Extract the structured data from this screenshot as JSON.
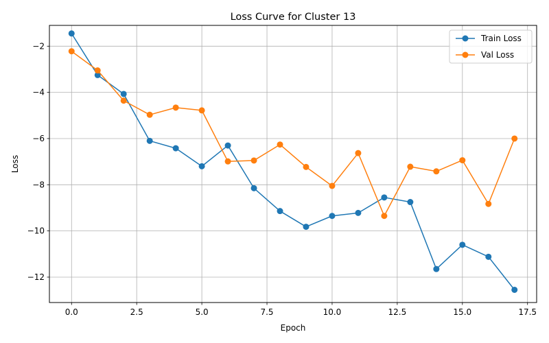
{
  "chart_data": {
    "type": "line",
    "title": "Loss Curve for Cluster 13",
    "xlabel": "Epoch",
    "ylabel": "Loss",
    "xlim": [
      -0.85,
      17.85
    ],
    "ylim": [
      -13.1,
      -1.1
    ],
    "xticks": [
      0.0,
      2.5,
      5.0,
      7.5,
      10.0,
      12.5,
      15.0,
      17.5
    ],
    "xtick_labels": [
      "0.0",
      "2.5",
      "5.0",
      "7.5",
      "10.0",
      "12.5",
      "15.0",
      "17.5"
    ],
    "yticks": [
      -12,
      -10,
      -8,
      -6,
      -4,
      -2
    ],
    "ytick_labels": [
      "−12",
      "−10",
      "−8",
      "−6",
      "−4",
      "−2"
    ],
    "grid": true,
    "legend_position": "top-right",
    "x": [
      0,
      1,
      2,
      3,
      4,
      5,
      6,
      7,
      8,
      9,
      10,
      11,
      12,
      13,
      14,
      15,
      16,
      17
    ],
    "series": [
      {
        "name": "Train Loss",
        "color": "#1f77b4",
        "values": [
          -1.45,
          -3.25,
          -4.07,
          -6.1,
          -6.42,
          -7.2,
          -6.3,
          -8.15,
          -9.14,
          -9.82,
          -9.35,
          -9.22,
          -8.55,
          -8.75,
          -11.65,
          -10.6,
          -11.12,
          -12.55
        ]
      },
      {
        "name": "Val Loss",
        "color": "#ff7f0e",
        "values": [
          -2.22,
          -3.05,
          -4.36,
          -4.97,
          -4.66,
          -4.78,
          -6.99,
          -6.95,
          -6.26,
          -7.23,
          -8.05,
          -6.63,
          -9.35,
          -7.22,
          -7.42,
          -6.94,
          -8.83,
          -6.0
        ]
      }
    ]
  }
}
